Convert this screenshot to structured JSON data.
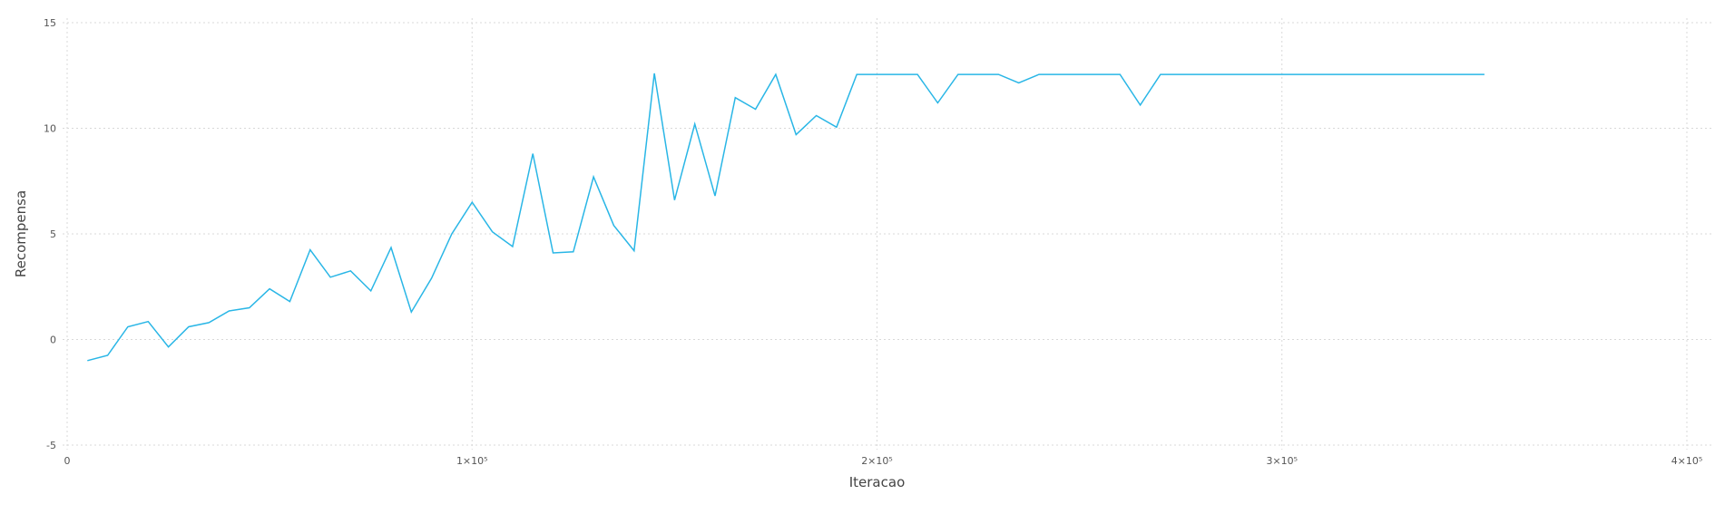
{
  "chart_data": {
    "type": "line",
    "title": "",
    "xlabel": "Iteracao",
    "ylabel": "Recompensa",
    "xlim": [
      0,
      400000
    ],
    "ylim": [
      -5,
      15
    ],
    "grid": true,
    "x_ticks": [
      {
        "value": 0,
        "label": "0"
      },
      {
        "value": 100000,
        "label": "1×10⁵"
      },
      {
        "value": 200000,
        "label": "2×10⁵"
      },
      {
        "value": 300000,
        "label": "3×10⁵"
      },
      {
        "value": 400000,
        "label": "4×10⁵"
      }
    ],
    "y_ticks": [
      {
        "value": -5,
        "label": "-5"
      },
      {
        "value": 0,
        "label": "0"
      },
      {
        "value": 5,
        "label": "5"
      },
      {
        "value": 10,
        "label": "10"
      },
      {
        "value": 15,
        "label": "15"
      }
    ],
    "series": [
      {
        "color": "#29b6e6",
        "x": [
          5000,
          10000,
          15000,
          20000,
          25000,
          30000,
          35000,
          40000,
          45000,
          50000,
          55000,
          60000,
          65000,
          70000,
          75000,
          80000,
          85000,
          90000,
          95000,
          100000,
          105000,
          110000,
          115000,
          120000,
          125000,
          130000,
          135000,
          140000,
          145000,
          150000,
          155000,
          160000,
          165000,
          170000,
          175000,
          180000,
          185000,
          190000,
          195000,
          200000,
          205000,
          210000,
          215000,
          220000,
          225000,
          230000,
          235000,
          240000,
          245000,
          250000,
          255000,
          260000,
          265000,
          270000,
          275000,
          280000,
          285000,
          290000,
          295000,
          300000,
          305000,
          310000,
          315000,
          320000,
          325000,
          330000,
          335000,
          340000,
          345000,
          350000
        ],
        "y": [
          -1.0,
          -0.75,
          0.6,
          0.85,
          -0.35,
          0.6,
          0.8,
          1.35,
          1.5,
          2.4,
          1.8,
          4.25,
          2.95,
          3.25,
          2.3,
          4.35,
          1.3,
          2.9,
          5.0,
          6.5,
          5.1,
          4.4,
          8.8,
          4.1,
          4.15,
          7.7,
          5.4,
          4.2,
          12.6,
          6.6,
          10.2,
          6.8,
          11.45,
          10.9,
          12.55,
          9.7,
          10.6,
          10.05,
          12.55,
          12.55,
          12.55,
          12.55,
          11.2,
          12.55,
          12.55,
          12.55,
          12.15,
          12.55,
          12.55,
          12.55,
          12.55,
          12.55,
          11.1,
          12.55,
          12.55,
          12.55,
          12.55,
          12.55,
          12.55,
          12.55,
          12.55,
          12.55,
          12.55,
          12.55,
          12.55,
          12.55,
          12.55,
          12.55,
          12.55,
          12.55
        ]
      }
    ]
  }
}
